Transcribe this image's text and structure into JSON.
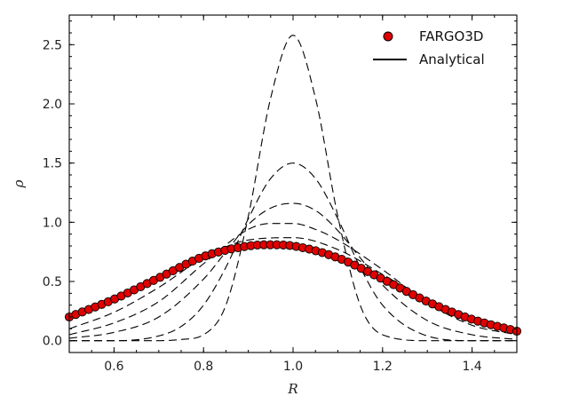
{
  "chart_data": {
    "type": "line",
    "xlabel": "R",
    "ylabel": "ρ",
    "xlim": [
      0.5,
      1.5
    ],
    "ylim": [
      -0.1,
      2.75
    ],
    "xticks": [
      0.6,
      0.8,
      1.0,
      1.2,
      1.4
    ],
    "xtick_labels": [
      "0.6",
      "0.8",
      "1.0",
      "1.2",
      "1.4"
    ],
    "yticks": [
      0.0,
      0.5,
      1.0,
      1.5,
      2.0,
      2.5
    ],
    "ytick_labels": [
      "0.0",
      "0.5",
      "1.0",
      "1.5",
      "2.0",
      "2.5"
    ],
    "legend": {
      "placement": "top-right",
      "entries": [
        {
          "label": "FARGO3D",
          "marker": "circle",
          "color": "#e00000"
        },
        {
          "label": "Analytical",
          "marker": "line",
          "color": "#000000"
        }
      ]
    },
    "analytical_curves": [
      {
        "style": "dashed",
        "color": "#000000",
        "x": [
          0.5,
          0.6,
          0.7,
          0.75,
          0.8,
          0.85,
          0.9,
          0.95,
          1.0,
          1.05,
          1.1,
          1.15,
          1.2,
          1.3,
          1.4,
          1.5
        ],
        "y": [
          0.0,
          0.0,
          0.0,
          0.01,
          0.05,
          0.3,
          1.05,
          2.05,
          2.58,
          2.05,
          1.05,
          0.3,
          0.05,
          0.0,
          0.0,
          0.0
        ]
      },
      {
        "style": "dashed",
        "color": "#000000",
        "x": [
          0.5,
          0.6,
          0.7,
          0.75,
          0.8,
          0.85,
          0.9,
          0.95,
          1.0,
          1.05,
          1.1,
          1.15,
          1.2,
          1.3,
          1.4,
          1.5
        ],
        "y": [
          0.0,
          0.0,
          0.04,
          0.12,
          0.3,
          0.62,
          1.03,
          1.37,
          1.5,
          1.37,
          1.03,
          0.62,
          0.3,
          0.04,
          0.0,
          0.0
        ]
      },
      {
        "style": "dashed",
        "color": "#000000",
        "x": [
          0.5,
          0.6,
          0.7,
          0.8,
          0.85,
          0.9,
          0.95,
          1.0,
          1.05,
          1.1,
          1.15,
          1.2,
          1.3,
          1.4,
          1.5
        ],
        "y": [
          0.02,
          0.07,
          0.2,
          0.52,
          0.75,
          0.98,
          1.12,
          1.16,
          1.1,
          0.93,
          0.7,
          0.47,
          0.17,
          0.05,
          0.01
        ]
      },
      {
        "style": "dashed",
        "color": "#000000",
        "x": [
          0.5,
          0.6,
          0.7,
          0.8,
          0.9,
          0.95,
          1.0,
          1.05,
          1.1,
          1.2,
          1.3,
          1.4,
          1.5
        ],
        "y": [
          0.05,
          0.15,
          0.33,
          0.65,
          0.94,
          0.99,
          0.99,
          0.94,
          0.85,
          0.6,
          0.32,
          0.13,
          0.05
        ]
      },
      {
        "style": "dashed",
        "color": "#000000",
        "x": [
          0.5,
          0.6,
          0.7,
          0.8,
          0.9,
          1.0,
          1.1,
          1.2,
          1.3,
          1.4,
          1.5
        ],
        "y": [
          0.1,
          0.24,
          0.45,
          0.7,
          0.85,
          0.87,
          0.77,
          0.56,
          0.34,
          0.17,
          0.07
        ]
      },
      {
        "style": "solid",
        "color": "#000000",
        "x": [
          0.5,
          0.6,
          0.7,
          0.8,
          0.9,
          0.95,
          1.0,
          1.1,
          1.2,
          1.3,
          1.4,
          1.5
        ],
        "y": [
          0.2,
          0.35,
          0.53,
          0.71,
          0.8,
          0.81,
          0.8,
          0.7,
          0.52,
          0.33,
          0.18,
          0.08
        ]
      }
    ],
    "fargo3d_series": {
      "name": "FARGO3D",
      "color": "#e00000",
      "x_start": 0.5,
      "x_end": 1.5,
      "n_points": 70,
      "x": [
        0.5,
        0.6,
        0.7,
        0.8,
        0.9,
        0.95,
        1.0,
        1.1,
        1.2,
        1.3,
        1.4,
        1.5
      ],
      "y": [
        0.2,
        0.35,
        0.53,
        0.71,
        0.8,
        0.81,
        0.8,
        0.7,
        0.52,
        0.33,
        0.18,
        0.08
      ]
    }
  }
}
